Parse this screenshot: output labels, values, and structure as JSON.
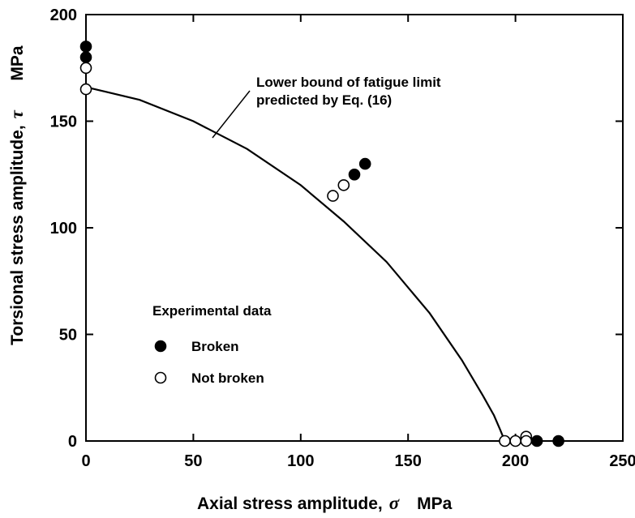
{
  "chart_data": {
    "type": "scatter",
    "xlabel": "Axial stress amplitude,",
    "xlabel_symbol": "σ",
    "xlabel_unit": "MPa",
    "ylabel": "Torsional stress amplitude,",
    "ylabel_symbol": "τ",
    "ylabel_unit": "MPa",
    "xlim": [
      0,
      250
    ],
    "ylim": [
      0,
      200
    ],
    "xticks": [
      "0",
      "50",
      "100",
      "150",
      "200",
      "250"
    ],
    "yticks": [
      "0",
      "50",
      "100",
      "150",
      "200"
    ],
    "grid": false,
    "annotation": [
      "Lower bound of fatigue limit",
      "predicted by Eq. (16)"
    ],
    "legend": {
      "title": "Experimental data",
      "placement": "lower-left",
      "entries": [
        {
          "label": "Broken",
          "marker": "filled-circle"
        },
        {
          "label": "Not broken",
          "marker": "open-circle"
        }
      ]
    },
    "curve": {
      "x": [
        0,
        25,
        50,
        75,
        100,
        120,
        140,
        160,
        175,
        185,
        190,
        193,
        195
      ],
      "y": [
        166,
        160,
        150,
        137,
        120,
        103,
        84,
        60,
        38,
        21,
        12,
        5,
        0
      ]
    },
    "series": [
      {
        "name": "Broken",
        "marker": "filled",
        "points": [
          [
            0,
            185
          ],
          [
            0,
            180
          ],
          [
            125,
            125
          ],
          [
            130,
            130
          ],
          [
            210,
            0
          ],
          [
            220,
            0
          ]
        ]
      },
      {
        "name": "Not broken",
        "marker": "open",
        "points": [
          [
            0,
            175
          ],
          [
            0,
            165
          ],
          [
            115,
            115
          ],
          [
            120,
            120
          ],
          [
            195,
            0
          ],
          [
            200,
            0
          ],
          [
            205,
            2
          ],
          [
            205,
            0
          ]
        ]
      }
    ]
  }
}
